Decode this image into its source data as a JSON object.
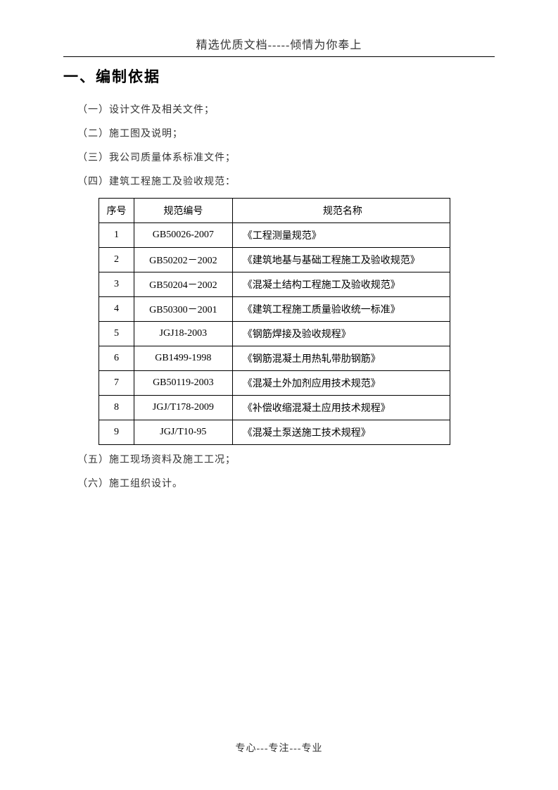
{
  "header": {
    "text": "精选优质文档-----倾情为你奉上"
  },
  "section": {
    "title": "一、编制依据"
  },
  "items": {
    "item1": "（一）设计文件及相关文件；",
    "item2": "（二）施工图及说明；",
    "item3": "（三）我公司质量体系标准文件；",
    "item4": "（四）建筑工程施工及验收规范：",
    "item5": "（五）施工现场资料及施工工况；",
    "item6": "（六）施工组织设计。"
  },
  "table": {
    "headers": {
      "seq": "序号",
      "code": "规范编号",
      "name": "规范名称"
    },
    "rows": [
      {
        "seq": "1",
        "code": "GB50026-2007",
        "name": "《工程测量规范》"
      },
      {
        "seq": "2",
        "code": "GB50202－2002",
        "name": "《建筑地基与基础工程施工及验收规范》"
      },
      {
        "seq": "3",
        "code": "GB50204－2002",
        "name": "《混凝土结构工程施工及验收规范》"
      },
      {
        "seq": "4",
        "code": "GB50300－2001",
        "name": "《建筑工程施工质量验收统一标准》"
      },
      {
        "seq": "5",
        "code": "JGJ18-2003",
        "name": "《钢筋焊接及验收规程》"
      },
      {
        "seq": "6",
        "code": "GB1499-1998",
        "name": "《钢筋混凝土用热轧带肋钢筋》"
      },
      {
        "seq": "7",
        "code": "GB50119-2003",
        "name": "《混凝土外加剂应用技术规范》"
      },
      {
        "seq": "8",
        "code": "JGJ/T178-2009",
        "name": "《补偿收缩混凝土应用技术规程》"
      },
      {
        "seq": "9",
        "code": "JGJ/T10-95",
        "name": "《混凝土泵送施工技术规程》"
      }
    ]
  },
  "footer": {
    "text": "专心---专注---专业"
  }
}
